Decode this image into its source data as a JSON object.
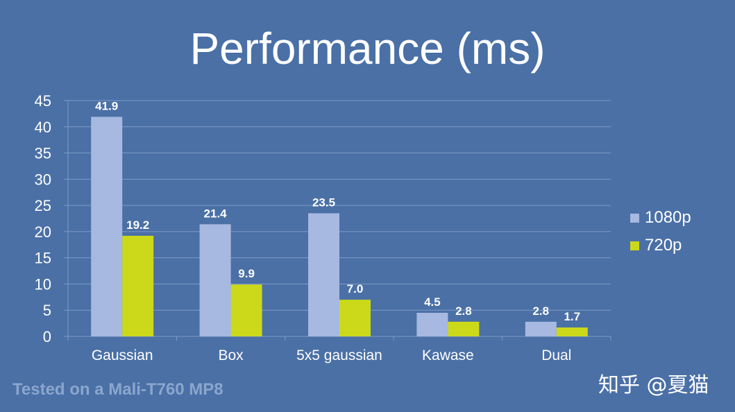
{
  "chart_data": {
    "type": "bar",
    "title": "Performance (ms)",
    "categories": [
      "Gaussian",
      "Box",
      "5x5 gaussian",
      "Kawase",
      "Dual"
    ],
    "series": [
      {
        "name": "1080p",
        "values": [
          41.9,
          21.4,
          23.5,
          4.5,
          2.8
        ],
        "color": "#a7b8e1"
      },
      {
        "name": "720p",
        "values": [
          19.2,
          9.9,
          7.0,
          2.8,
          1.7
        ],
        "color": "#ccd91a"
      }
    ],
    "value_labels": [
      [
        "41.9",
        "21.4",
        "23.5",
        "4.5",
        "2.8"
      ],
      [
        "19.2",
        "9.9",
        "7.0",
        "2.8",
        "1.7"
      ]
    ],
    "ylim": [
      0,
      45
    ],
    "yticks": [
      0,
      5,
      10,
      15,
      20,
      25,
      30,
      35,
      40,
      45
    ],
    "grid": true,
    "legend_position": "right",
    "xlabel": "",
    "ylabel": ""
  },
  "footnote": "Tested on a Mali-T760 MP8",
  "watermark": "知乎 @夏猫",
  "colors": {
    "background": "#4a70a6",
    "grid": "#7e9bc6",
    "axis_text": "#ffffff",
    "value_label": "#ffffff"
  }
}
